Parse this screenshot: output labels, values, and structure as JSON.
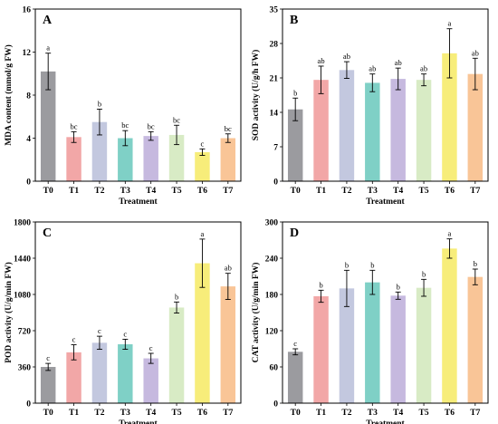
{
  "colors": {
    "T0": "#9b9b9f",
    "T1": "#f2a7a7",
    "T2": "#c3c8df",
    "T3": "#7fd0c6",
    "T4": "#c6b9df",
    "T5": "#d8ebc5",
    "T6": "#f7ed7a",
    "T7": "#f9c597",
    "error_bar": "#000000"
  },
  "chart_data": [
    {
      "type": "bar",
      "panel": "A",
      "categories": [
        "T0",
        "T1",
        "T2",
        "T3",
        "T4",
        "T5",
        "T6",
        "T7"
      ],
      "values": [
        10.2,
        4.1,
        5.5,
        4.0,
        4.2,
        4.3,
        2.7,
        4.0
      ],
      "errors": [
        1.7,
        0.5,
        1.2,
        0.7,
        0.4,
        0.9,
        0.3,
        0.4
      ],
      "labels": [
        "a",
        "bc",
        "b",
        "bc",
        "bc",
        "bc",
        "c",
        "bc"
      ],
      "xlabel": "Treatment",
      "ylabel": "MDA content (mmol/g FW)",
      "ylim": [
        0,
        16
      ],
      "yticks": [
        0,
        4,
        8,
        12,
        16
      ]
    },
    {
      "type": "bar",
      "panel": "B",
      "categories": [
        "T0",
        "T1",
        "T2",
        "T3",
        "T4",
        "T5",
        "T6",
        "T7"
      ],
      "values": [
        14.6,
        20.6,
        22.6,
        20.0,
        20.8,
        20.6,
        26.0,
        21.8
      ],
      "errors": [
        2.3,
        2.8,
        1.7,
        1.8,
        2.2,
        1.2,
        5.0,
        3.2
      ],
      "labels": [
        "b",
        "ab",
        "ab",
        "ab",
        "ab",
        "ab",
        "a",
        "ab"
      ],
      "xlabel": "Treatment",
      "ylabel": "SOD activity (U/g/h FW)",
      "ylim": [
        0,
        35
      ],
      "yticks": [
        0,
        7,
        14,
        21,
        28,
        35
      ]
    },
    {
      "type": "bar",
      "panel": "C",
      "categories": [
        "T0",
        "T1",
        "T2",
        "T3",
        "T4",
        "T5",
        "T6",
        "T7"
      ],
      "values": [
        360,
        505,
        600,
        585,
        445,
        950,
        1390,
        1160
      ],
      "errors": [
        35,
        75,
        65,
        50,
        50,
        55,
        240,
        130
      ],
      "labels": [
        "c",
        "c",
        "c",
        "c",
        "c",
        "b",
        "a",
        "ab"
      ],
      "xlabel": "Treatment",
      "ylabel": "POD activity (U/g/min FW)",
      "ylim": [
        0,
        1800
      ],
      "yticks": [
        0,
        360,
        720,
        1080,
        1440,
        1800
      ]
    },
    {
      "type": "bar",
      "panel": "D",
      "categories": [
        "T0",
        "T1",
        "T2",
        "T3",
        "T4",
        "T5",
        "T6",
        "T7"
      ],
      "values": [
        85,
        177,
        190,
        200,
        178,
        191,
        256,
        209
      ],
      "errors": [
        5,
        10,
        30,
        20,
        6,
        14,
        16,
        13
      ],
      "labels": [
        "c",
        "b",
        "b",
        "b",
        "b",
        "b",
        "a",
        "b"
      ],
      "xlabel": "Treatment",
      "ylabel": "CAT activity (U/g/min FW)",
      "ylim": [
        0,
        300
      ],
      "yticks": [
        0,
        60,
        120,
        180,
        240,
        300
      ]
    }
  ]
}
